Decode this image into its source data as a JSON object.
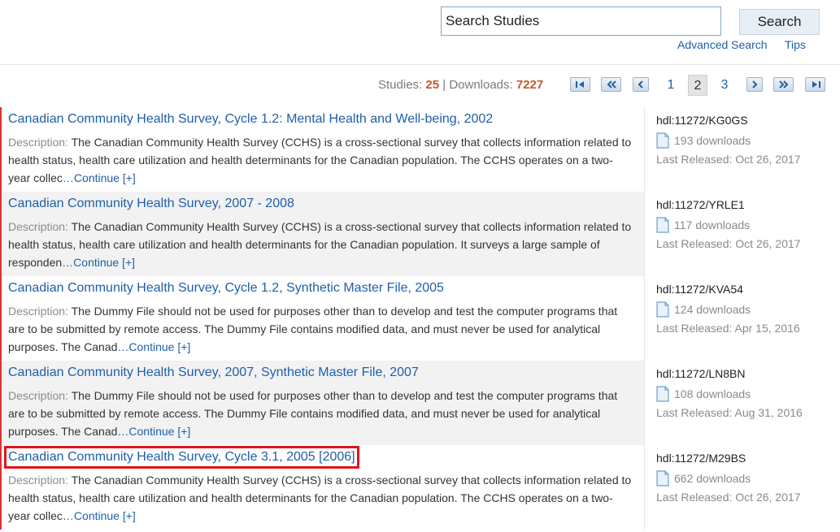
{
  "search": {
    "value": "Search Studies",
    "button_label": "Search",
    "advanced_label": "Advanced Search",
    "tips_label": "Tips"
  },
  "stats": {
    "studies_label": "Studies:",
    "studies_count": "25",
    "separator": "|",
    "downloads_label": "Downloads:",
    "downloads_count": "7227"
  },
  "pager": {
    "pages": [
      "1",
      "2",
      "3"
    ],
    "current": "2",
    "icons": [
      "first-page-icon",
      "rewind-icon",
      "previous-icon",
      "next-icon",
      "fast-forward-icon",
      "last-page-icon"
    ]
  },
  "results": [
    {
      "title": "Canadian Community Health Survey, Cycle 1.2: Mental Health and Well-being, 2002",
      "desc_label": "Description:",
      "description": "The Canadian Community Health Survey (CCHS) is a cross-sectional survey that collects information related to health status, health care utilization and health determinants for the Canadian population. The CCHS operates on a two-year collec",
      "continue": "…Continue [+]",
      "hdl": "hdl:11272/KG0GS",
      "downloads": "193 downloads",
      "released": "Last Released: Oct 26, 2017"
    },
    {
      "title": "Canadian Community Health Survey, 2007 - 2008",
      "desc_label": "Description:",
      "description": "The Canadian Community Health Survey (CCHS) is a cross-sectional survey that collects information related to health status, health care utilization and health determinants for the Canadian population. It surveys a large sample of responden",
      "continue": "…Continue [+]",
      "hdl": "hdl:11272/YRLE1",
      "downloads": "117 downloads",
      "released": "Last Released: Oct 26, 2017"
    },
    {
      "title": "Canadian Community Health Survey, Cycle 1.2, Synthetic Master File, 2005",
      "desc_label": "Description:",
      "description": "The Dummy File should not be used for purposes other than to develop and test the computer programs that are to be submitted by remote access. The Dummy File contains modified data, and must never be used for analytical purposes. The Canad",
      "continue": "…Continue [+]",
      "hdl": "hdl:11272/KVA54",
      "downloads": "124 downloads",
      "released": "Last Released: Apr 15, 2016"
    },
    {
      "title": "Canadian Community Health Survey, 2007, Synthetic Master File, 2007",
      "desc_label": "Description:",
      "description": "The Dummy File should not be used for purposes other than to develop and test the computer programs that are to be submitted by remote access. The Dummy File contains modified data, and must never be used for analytical purposes. The Canad",
      "continue": "…Continue [+]",
      "hdl": "hdl:11272/LN8BN",
      "downloads": "108 downloads",
      "released": "Last Released: Aug 31, 2016"
    },
    {
      "title": "Canadian Community Health Survey, Cycle 3.1, 2005 [2006]",
      "desc_label": "Description:",
      "description": "The Canadian Community Health Survey (CCHS) is a cross-sectional survey that collects information related to health status, health care utilization and health determinants for the Canadian population. The CCHS operates on a two-year collec",
      "continue": "…Continue [+]",
      "hdl": "hdl:11272/M29BS",
      "downloads": "662 downloads",
      "released": "Last Released: Oct 26, 2017"
    }
  ],
  "colors": {
    "link": "#1f5fa8",
    "count_accent": "#c05a2a",
    "highlight_box": "#e0141b",
    "row_alt_bg": "#f2f2f2"
  }
}
